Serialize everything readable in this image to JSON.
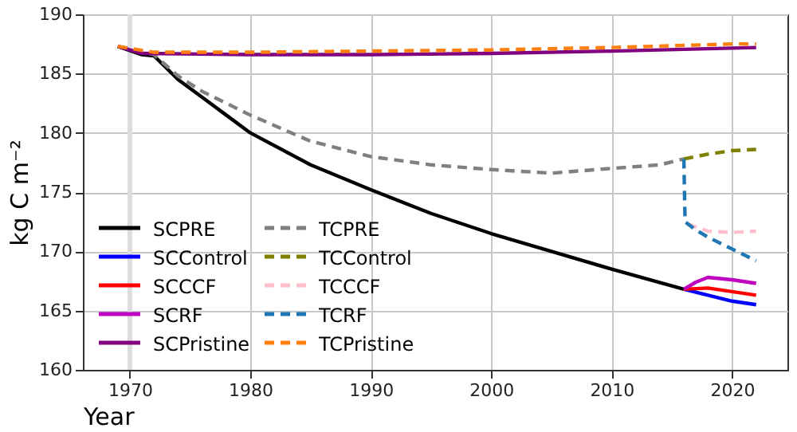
{
  "chart_data": {
    "type": "line",
    "xlabel": "Year",
    "ylabel": "kg C m⁻²",
    "xlim": [
      1966.1,
      2024.6
    ],
    "xticks": [
      1970,
      1980,
      1990,
      2000,
      2010,
      2020
    ],
    "ylim": [
      160,
      190
    ],
    "yticks": [
      160,
      165,
      170,
      175,
      180,
      185,
      190
    ],
    "grid": true,
    "legend": "bottom left",
    "ref_lines": [
      {
        "axis": "x",
        "value": 1970,
        "color": "#dddddd"
      }
    ],
    "series": [
      {
        "name": "SCPRE",
        "color": "#000000",
        "line_style": "solid",
        "x": [
          1969,
          1971,
          1972,
          1974,
          1976,
          1978,
          1980,
          1985,
          1990,
          1995,
          2000,
          2005,
          2010,
          2016
        ],
        "values": [
          187.3,
          186.6,
          186.5,
          184.5,
          183,
          181.5,
          180,
          177.3,
          175.2,
          173.2,
          171.5,
          170,
          168.5,
          166.8
        ]
      },
      {
        "name": "TCPRE",
        "color": "#808080",
        "line_style": "dashed",
        "x": [
          1969,
          1972,
          1974,
          1976,
          1980,
          1985,
          1990,
          1995,
          2000,
          2005,
          2010,
          2014,
          2016
        ],
        "values": [
          187.3,
          186.6,
          184.8,
          183.5,
          181.5,
          179.3,
          178,
          177.3,
          176.9,
          176.6,
          177,
          177.3,
          177.8
        ]
      },
      {
        "name": "SCControl",
        "color": "#0000ff",
        "line_style": "solid",
        "x": [
          2016,
          2018,
          2020,
          2022
        ],
        "values": [
          166.8,
          166.3,
          165.8,
          165.5
        ]
      },
      {
        "name": "TCControl",
        "color": "#808000",
        "line_style": "dashed",
        "x": [
          2016,
          2018,
          2020,
          2022
        ],
        "values": [
          177.8,
          178.2,
          178.5,
          178.6
        ]
      },
      {
        "name": "SCCCF",
        "color": "#ff0000",
        "line_style": "solid",
        "x": [
          2016,
          2018,
          2020,
          2022
        ],
        "values": [
          166.8,
          166.9,
          166.6,
          166.3
        ]
      },
      {
        "name": "TCCCF",
        "color": "#ffc0cb",
        "line_style": "dashed",
        "x": [
          2016.3,
          2018,
          2020,
          2022
        ],
        "values": [
          172.3,
          171.7,
          171.6,
          171.7
        ]
      },
      {
        "name": "SCRF",
        "color": "#bf00bf",
        "line_style": "solid",
        "x": [
          2016,
          2017,
          2018,
          2020,
          2022
        ],
        "values": [
          166.8,
          167.4,
          167.8,
          167.6,
          167.3
        ]
      },
      {
        "name": "TCRF",
        "color": "#1f77b4",
        "line_style": "dashed",
        "x": [
          2016,
          2016.1,
          2017,
          2018,
          2020,
          2022
        ],
        "values": [
          177.8,
          172.5,
          171.8,
          171.2,
          170.2,
          169.2
        ]
      },
      {
        "name": "SCPristine",
        "color": "#800080",
        "line_style": "solid",
        "x": [
          1969,
          1971,
          1980,
          1990,
          2000,
          2010,
          2022
        ],
        "values": [
          187.3,
          186.7,
          186.6,
          186.6,
          186.7,
          186.9,
          187.2
        ]
      },
      {
        "name": "TCPristine",
        "color": "#ff7f0e",
        "line_style": "dashed",
        "x": [
          1969,
          1972,
          1980,
          1990,
          2000,
          2010,
          2020,
          2022
        ],
        "values": [
          187.3,
          186.8,
          186.8,
          186.9,
          187,
          187.2,
          187.5,
          187.5
        ]
      }
    ]
  }
}
